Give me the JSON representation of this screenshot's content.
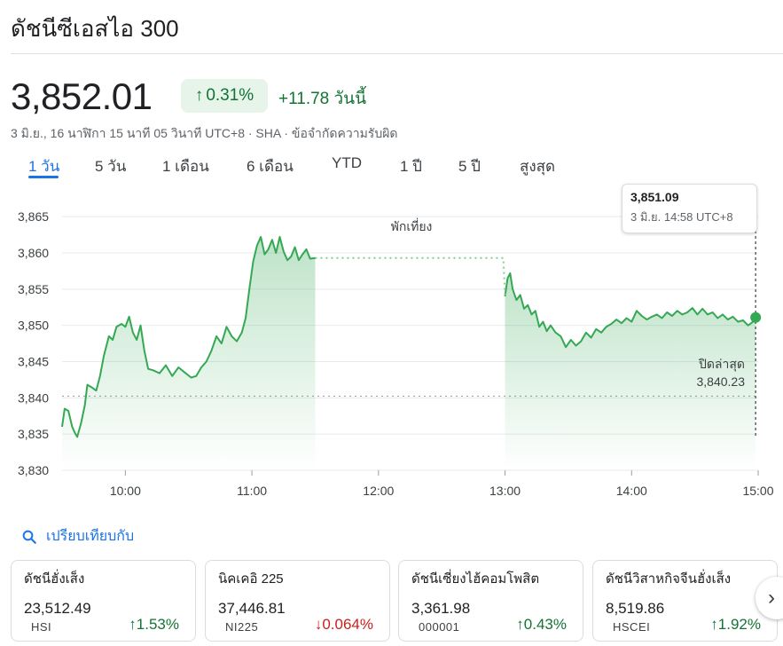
{
  "header": {
    "title": "ดัชนีซีเอสไอ 300"
  },
  "quote": {
    "price": "3,852.01",
    "pct_arrow": "↑",
    "pct_change": "0.31%",
    "abs_change": "+11.78 วันนี้",
    "timestamp_line": "3 มิ.ย., 16 นาฬิกา 15 นาที 05 วินาที UTC+8 · SHA · ข้อจำกัดความรับผิด"
  },
  "tabs": [
    {
      "label": "1 วัน",
      "active": true
    },
    {
      "label": "5 วัน"
    },
    {
      "label": "1 เดือน"
    },
    {
      "label": "6 เดือน"
    },
    {
      "label": "YTD"
    },
    {
      "label": "1 ปี"
    },
    {
      "label": "5 ปี"
    },
    {
      "label": "สูงสุด"
    }
  ],
  "chart": {
    "lunch_label": "พักเที่ยง",
    "tooltip_value": "3,851.09",
    "tooltip_time": "3 มิ.ย. 14:58 UTC+8",
    "prev_close_label": "ปิดล่าสุด",
    "prev_close_value": "3,840.23"
  },
  "chart_data": {
    "type": "line",
    "y_ticks": [
      "3,865",
      "3,860",
      "3,855",
      "3,850",
      "3,845",
      "3,840",
      "3,835",
      "3,830"
    ],
    "x_ticks": [
      "10:00",
      "11:00",
      "12:00",
      "13:00",
      "14:00",
      "15:00"
    ],
    "ylim": [
      3830,
      3866
    ],
    "prev_close": 3840.23,
    "line_color": "#34a853",
    "morning_session": [
      [
        9.5,
        3836.0
      ],
      [
        9.52,
        3838.5
      ],
      [
        9.55,
        3838.2
      ],
      [
        9.58,
        3836.0
      ],
      [
        9.6,
        3835.2
      ],
      [
        9.62,
        3834.6
      ],
      [
        9.65,
        3836.5
      ],
      [
        9.68,
        3839.0
      ],
      [
        9.7,
        3841.8
      ],
      [
        9.73,
        3841.5
      ],
      [
        9.77,
        3841.0
      ],
      [
        9.8,
        3843.0
      ],
      [
        9.83,
        3845.8
      ],
      [
        9.87,
        3848.5
      ],
      [
        9.9,
        3848.0
      ],
      [
        9.93,
        3849.8
      ],
      [
        9.97,
        3850.2
      ],
      [
        10.0,
        3849.8
      ],
      [
        10.03,
        3851.2
      ],
      [
        10.06,
        3849.0
      ],
      [
        10.09,
        3848.0
      ],
      [
        10.12,
        3850.0
      ],
      [
        10.15,
        3846.5
      ],
      [
        10.18,
        3844.0
      ],
      [
        10.22,
        3843.8
      ],
      [
        10.27,
        3843.4
      ],
      [
        10.32,
        3844.5
      ],
      [
        10.37,
        3843.0
      ],
      [
        10.42,
        3844.2
      ],
      [
        10.47,
        3843.5
      ],
      [
        10.52,
        3842.8
      ],
      [
        10.56,
        3843.0
      ],
      [
        10.6,
        3844.2
      ],
      [
        10.64,
        3845.0
      ],
      [
        10.68,
        3846.5
      ],
      [
        10.72,
        3848.5
      ],
      [
        10.76,
        3847.5
      ],
      [
        10.8,
        3849.8
      ],
      [
        10.84,
        3848.5
      ],
      [
        10.88,
        3847.8
      ],
      [
        10.92,
        3849.0
      ],
      [
        10.95,
        3851.0
      ],
      [
        10.98,
        3855.0
      ],
      [
        11.01,
        3858.8
      ],
      [
        11.04,
        3861.0
      ],
      [
        11.07,
        3862.2
      ],
      [
        11.1,
        3859.8
      ],
      [
        11.13,
        3860.5
      ],
      [
        11.16,
        3861.8
      ],
      [
        11.19,
        3860.0
      ],
      [
        11.22,
        3862.2
      ],
      [
        11.25,
        3860.2
      ],
      [
        11.28,
        3859.0
      ],
      [
        11.31,
        3859.5
      ],
      [
        11.34,
        3860.8
      ],
      [
        11.37,
        3859.0
      ],
      [
        11.4,
        3859.8
      ],
      [
        11.43,
        3860.5
      ],
      [
        11.46,
        3859.2
      ],
      [
        11.5,
        3859.3
      ]
    ],
    "afternoon_session": [
      [
        13.0,
        3854.0
      ],
      [
        13.02,
        3856.5
      ],
      [
        13.04,
        3857.2
      ],
      [
        13.06,
        3855.0
      ],
      [
        13.09,
        3853.5
      ],
      [
        13.12,
        3854.2
      ],
      [
        13.15,
        3852.3
      ],
      [
        13.18,
        3852.8
      ],
      [
        13.21,
        3851.5
      ],
      [
        13.24,
        3852.0
      ],
      [
        13.27,
        3849.8
      ],
      [
        13.3,
        3850.5
      ],
      [
        13.33,
        3849.2
      ],
      [
        13.36,
        3850.0
      ],
      [
        13.4,
        3849.0
      ],
      [
        13.44,
        3848.5
      ],
      [
        13.48,
        3847.0
      ],
      [
        13.52,
        3848.0
      ],
      [
        13.56,
        3847.2
      ],
      [
        13.6,
        3847.8
      ],
      [
        13.64,
        3849.0
      ],
      [
        13.68,
        3848.3
      ],
      [
        13.72,
        3849.5
      ],
      [
        13.76,
        3849.0
      ],
      [
        13.8,
        3849.8
      ],
      [
        13.84,
        3850.2
      ],
      [
        13.88,
        3850.8
      ],
      [
        13.92,
        3850.3
      ],
      [
        13.96,
        3851.0
      ],
      [
        14.0,
        3850.5
      ],
      [
        14.04,
        3852.0
      ],
      [
        14.08,
        3851.3
      ],
      [
        14.12,
        3850.8
      ],
      [
        14.16,
        3851.2
      ],
      [
        14.2,
        3851.5
      ],
      [
        14.24,
        3851.0
      ],
      [
        14.28,
        3851.8
      ],
      [
        14.32,
        3851.3
      ],
      [
        14.36,
        3852.0
      ],
      [
        14.4,
        3851.5
      ],
      [
        14.44,
        3851.8
      ],
      [
        14.48,
        3852.4
      ],
      [
        14.52,
        3851.5
      ],
      [
        14.56,
        3852.3
      ],
      [
        14.6,
        3851.5
      ],
      [
        14.64,
        3851.8
      ],
      [
        14.68,
        3851.0
      ],
      [
        14.72,
        3851.5
      ],
      [
        14.76,
        3850.8
      ],
      [
        14.8,
        3851.2
      ],
      [
        14.84,
        3850.5
      ],
      [
        14.88,
        3850.7
      ],
      [
        14.92,
        3850.0
      ],
      [
        14.96,
        3850.5
      ],
      [
        14.98,
        3851.09
      ]
    ]
  },
  "compare": {
    "label": "เปรียบเทียบกับ"
  },
  "cards": [
    {
      "name": "ดัชนีฮั่งเส็ง",
      "value": "23,512.49",
      "code": "HSI",
      "change": "1.53%",
      "direction": "up",
      "arrow": "↑"
    },
    {
      "name": "นิคเคอิ 225",
      "value": "37,446.81",
      "code": "NI225",
      "change": "0.064%",
      "direction": "down",
      "arrow": "↓"
    },
    {
      "name": "ดัชนีเซี่ยงไฮ้คอมโพสิต",
      "value": "3,361.98",
      "code": "000001",
      "change": "0.43%",
      "direction": "up",
      "arrow": "↑"
    },
    {
      "name": "ดัชนีวิสาหกิจจีนฮั่งเส็ง",
      "value": "8,519.86",
      "code": "HSCEI",
      "change": "1.92%",
      "direction": "up",
      "arrow": "↑"
    }
  ],
  "nav": {
    "next_icon": "chevron-right-icon"
  }
}
